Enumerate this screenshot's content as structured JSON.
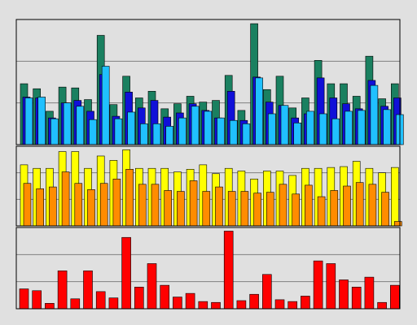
{
  "chart_data": [
    {
      "type": "bar",
      "categories": [
        null,
        null,
        null,
        null,
        null,
        null,
        null,
        null,
        null,
        null,
        null,
        null,
        null,
        null,
        null,
        null,
        null,
        null,
        null,
        null,
        null,
        null,
        null,
        null,
        null,
        null,
        null,
        null,
        null,
        null
      ],
      "ylim": [
        0,
        150
      ],
      "yticks": [
        50,
        100
      ],
      "grid": true,
      "series": [
        {
          "color": "#1a8060",
          "values": [
            73,
            67,
            40,
            69,
            68,
            54,
            131,
            48,
            82,
            56,
            64,
            43,
            49,
            58,
            51,
            53,
            83,
            41,
            145,
            66,
            82,
            44,
            56,
            101,
            73,
            73,
            58,
            106,
            55,
            73
          ]
        },
        {
          "color": "#1010d8",
          "values": [
            57,
            56,
            32,
            50,
            53,
            40,
            84,
            34,
            63,
            44,
            53,
            33,
            38,
            49,
            41,
            32,
            64,
            29,
            81,
            51,
            47,
            32,
            37,
            80,
            56,
            49,
            43,
            77,
            46,
            56
          ]
        },
        {
          "color": "#20c0ff",
          "values": [
            56,
            57,
            31,
            50,
            46,
            30,
            94,
            31,
            39,
            25,
            25,
            22,
            32,
            46,
            40,
            32,
            29,
            25,
            80,
            37,
            47,
            26,
            40,
            37,
            31,
            40,
            41,
            71,
            42,
            36
          ]
        }
      ]
    },
    {
      "type": "bar",
      "categories": [
        null,
        null,
        null,
        null,
        null,
        null,
        null,
        null,
        null,
        null,
        null,
        null,
        null,
        null,
        null,
        null,
        null,
        null,
        null,
        null,
        null,
        null,
        null,
        null,
        null,
        null,
        null,
        null,
        null,
        null
      ],
      "ylim": [
        0,
        90
      ],
      "yticks": [
        30,
        60
      ],
      "grid": true,
      "series": [
        {
          "color": "#ffff00",
          "values": [
            69,
            65,
            65,
            84,
            84,
            65,
            79,
            74,
            86,
            65,
            65,
            65,
            61,
            64,
            69,
            59,
            65,
            62,
            53,
            62,
            62,
            57,
            65,
            65,
            66,
            67,
            73,
            65,
            60,
            66
          ]
        },
        {
          "color": "#ff8c00",
          "values": [
            48,
            42,
            44,
            61,
            48,
            41,
            48,
            53,
            64,
            47,
            47,
            40,
            39,
            51,
            39,
            44,
            39,
            39,
            37,
            38,
            47,
            36,
            46,
            33,
            40,
            45,
            49,
            47,
            38,
            5
          ]
        }
      ]
    },
    {
      "type": "bar",
      "categories": [
        null,
        null,
        null,
        null,
        null,
        null,
        null,
        null,
        null,
        null,
        null,
        null,
        null,
        null,
        null,
        null,
        null,
        null,
        null,
        null,
        null,
        null,
        null,
        null,
        null,
        null,
        null,
        null,
        null,
        null
      ],
      "ylim": [
        0,
        90
      ],
      "yticks": [
        30,
        60
      ],
      "grid": true,
      "series": [
        {
          "color": "#ff0000",
          "values": [
            22,
            20,
            6,
            42,
            11,
            42,
            19,
            12,
            79,
            24,
            50,
            26,
            13,
            17,
            8,
            7,
            86,
            9,
            16,
            38,
            10,
            8,
            14,
            53,
            50,
            32,
            24,
            35,
            7,
            26
          ]
        }
      ]
    }
  ]
}
